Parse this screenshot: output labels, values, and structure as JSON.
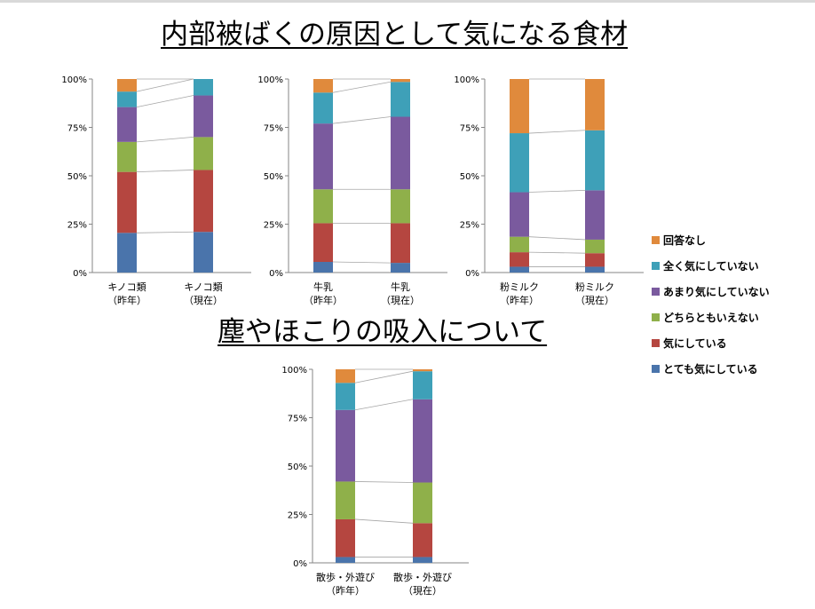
{
  "titles": {
    "food": "内部被ばくの原因として気になる食材",
    "dust": "塵やほこりの吸入について"
  },
  "legend": [
    {
      "label": "回答なし",
      "color": "#e08a3c"
    },
    {
      "label": "全く気にしていない",
      "color": "#3ea0b8"
    },
    {
      "label": "あまり気にしていない",
      "color": "#7a5a9e"
    },
    {
      "label": "どちらともいえない",
      "color": "#8fb04a"
    },
    {
      "label": "気にしている",
      "color": "#b54640"
    },
    {
      "label": "とても気にしている",
      "color": "#4a74ab"
    }
  ],
  "chart_data": [
    {
      "type": "bar",
      "stacked": true,
      "title": "内部被ばくの原因として気になる食材",
      "ylim": [
        0,
        100
      ],
      "yticks": [
        "0%",
        "25%",
        "50%",
        "75%",
        "100%"
      ],
      "categories": [
        [
          "キノコ類",
          "（昨年）"
        ],
        [
          "キノコ類",
          "（現在）"
        ]
      ],
      "series": [
        {
          "name": "とても気にしている",
          "values": [
            20.5,
            21
          ]
        },
        {
          "name": "気にしている",
          "values": [
            31.5,
            32
          ]
        },
        {
          "name": "どちらともいえない",
          "values": [
            15.5,
            17
          ]
        },
        {
          "name": "あまり気にしていない",
          "values": [
            18,
            21.5
          ]
        },
        {
          "name": "全く気にしていない",
          "values": [
            8,
            8.5
          ]
        },
        {
          "name": "回答なし",
          "values": [
            6.5,
            0
          ]
        }
      ]
    },
    {
      "type": "bar",
      "stacked": true,
      "title": "内部被ばくの原因として気になる食材",
      "ylim": [
        0,
        100
      ],
      "yticks": [
        "0%",
        "25%",
        "50%",
        "75%",
        "100%"
      ],
      "categories": [
        [
          "牛乳",
          "（昨年）"
        ],
        [
          "牛乳",
          "（現在）"
        ]
      ],
      "series": [
        {
          "name": "とても気にしている",
          "values": [
            5.5,
            5
          ]
        },
        {
          "name": "気にしている",
          "values": [
            20,
            20.5
          ]
        },
        {
          "name": "どちらともいえない",
          "values": [
            17.5,
            17.5
          ]
        },
        {
          "name": "あまり気にしていない",
          "values": [
            34,
            37.5
          ]
        },
        {
          "name": "全く気にしていない",
          "values": [
            16,
            18
          ]
        },
        {
          "name": "回答なし",
          "values": [
            7,
            1.5
          ]
        }
      ]
    },
    {
      "type": "bar",
      "stacked": true,
      "title": "内部被ばくの原因として気になる食材",
      "ylim": [
        0,
        100
      ],
      "yticks": [
        "0%",
        "25%",
        "50%",
        "75%",
        "100%"
      ],
      "categories": [
        [
          "粉ミルク",
          "（昨年）"
        ],
        [
          "粉ミルク",
          "（現在）"
        ]
      ],
      "series": [
        {
          "name": "とても気にしている",
          "values": [
            3,
            3
          ]
        },
        {
          "name": "気にしている",
          "values": [
            7.5,
            7
          ]
        },
        {
          "name": "どちらともいえない",
          "values": [
            8,
            7
          ]
        },
        {
          "name": "あまり気にしていない",
          "values": [
            23,
            25.5
          ]
        },
        {
          "name": "全く気にしていない",
          "values": [
            30.5,
            31
          ]
        },
        {
          "name": "回答なし",
          "values": [
            28,
            26.5
          ]
        }
      ]
    },
    {
      "type": "bar",
      "stacked": true,
      "title": "塵やほこりの吸入について",
      "ylim": [
        0,
        100
      ],
      "yticks": [
        "0%",
        "25%",
        "50%",
        "75%",
        "100%"
      ],
      "categories": [
        [
          "散歩・外遊び",
          "（昨年）"
        ],
        [
          "散歩・外遊び",
          "（現在）"
        ]
      ],
      "series": [
        {
          "name": "とても気にしている",
          "values": [
            3,
            3
          ]
        },
        {
          "name": "気にしている",
          "values": [
            19.5,
            17.5
          ]
        },
        {
          "name": "どちらともいえない",
          "values": [
            19.5,
            21
          ]
        },
        {
          "name": "あまり気にしていない",
          "values": [
            37,
            43
          ]
        },
        {
          "name": "全く気にしていない",
          "values": [
            14,
            14.5
          ]
        },
        {
          "name": "回答なし",
          "values": [
            7,
            1
          ]
        }
      ]
    }
  ]
}
